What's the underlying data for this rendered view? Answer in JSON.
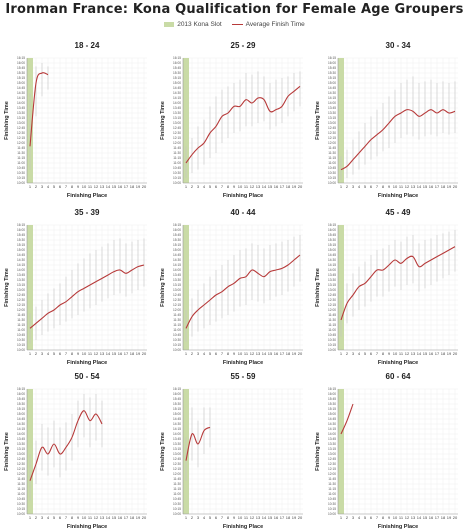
{
  "title": "Ironman France: Kona Qualification for Female Age Groupers",
  "legend": {
    "kona_slot": "2013 Kona Slot",
    "average": "Average Finish Time"
  },
  "colors": {
    "kona_band": "#c9dba6",
    "average_line": "#b73a3a",
    "range_line": "#c4c4c4",
    "grid": "#efefef"
  },
  "axis_labels": {
    "x": "Finishing Place",
    "y": "Finishing Time"
  },
  "chart_data": [
    {
      "type": "line",
      "title": "18 - 24",
      "kona_slots": 1,
      "xlim": [
        1,
        20
      ],
      "ylim": [
        600,
        975
      ],
      "average": [
        [
          1,
          710
        ],
        [
          2,
          900
        ],
        [
          3,
          930
        ],
        [
          4,
          925
        ]
      ],
      "ranges": [
        [
          1,
          640,
          870
        ],
        [
          2,
          800,
          950
        ],
        [
          3,
          860,
          960
        ],
        [
          4,
          880,
          950
        ]
      ]
    },
    {
      "type": "line",
      "title": "25 - 29",
      "kona_slots": 1,
      "xlim": [
        1,
        20
      ],
      "ylim": [
        600,
        975
      ],
      "average": [
        [
          1,
          660
        ],
        [
          2,
          685
        ],
        [
          3,
          705
        ],
        [
          4,
          720
        ],
        [
          5,
          750
        ],
        [
          6,
          770
        ],
        [
          7,
          800
        ],
        [
          8,
          810
        ],
        [
          9,
          830
        ],
        [
          10,
          830
        ],
        [
          11,
          850
        ],
        [
          12,
          840
        ],
        [
          13,
          855
        ],
        [
          14,
          850
        ],
        [
          15,
          815
        ],
        [
          16,
          820
        ],
        [
          17,
          830
        ],
        [
          18,
          860
        ],
        [
          19,
          875
        ],
        [
          20,
          890
        ]
      ],
      "ranges": [
        [
          1,
          615,
          710
        ],
        [
          2,
          630,
          735
        ],
        [
          3,
          640,
          770
        ],
        [
          4,
          655,
          790
        ],
        [
          5,
          675,
          830
        ],
        [
          6,
          690,
          860
        ],
        [
          7,
          720,
          880
        ],
        [
          8,
          735,
          890
        ],
        [
          9,
          750,
          900
        ],
        [
          10,
          755,
          910
        ],
        [
          11,
          770,
          930
        ],
        [
          12,
          770,
          925
        ],
        [
          13,
          780,
          935
        ],
        [
          14,
          785,
          920
        ],
        [
          15,
          760,
          900
        ],
        [
          16,
          770,
          910
        ],
        [
          17,
          780,
          915
        ],
        [
          18,
          800,
          920
        ],
        [
          19,
          815,
          930
        ],
        [
          20,
          830,
          935
        ]
      ]
    },
    {
      "type": "line",
      "title": "30 - 34",
      "kona_slots": 1,
      "xlim": [
        1,
        20
      ],
      "ylim": [
        600,
        975
      ],
      "average": [
        [
          1,
          640
        ],
        [
          2,
          650
        ],
        [
          3,
          670
        ],
        [
          4,
          690
        ],
        [
          5,
          710
        ],
        [
          6,
          730
        ],
        [
          7,
          745
        ],
        [
          8,
          760
        ],
        [
          9,
          780
        ],
        [
          10,
          800
        ],
        [
          11,
          810
        ],
        [
          12,
          820
        ],
        [
          13,
          815
        ],
        [
          14,
          800
        ],
        [
          15,
          810
        ],
        [
          16,
          820
        ],
        [
          17,
          810
        ],
        [
          18,
          820
        ],
        [
          19,
          810
        ],
        [
          20,
          815
        ]
      ],
      "ranges": [
        [
          1,
          610,
          680
        ],
        [
          2,
          615,
          700
        ],
        [
          3,
          625,
          730
        ],
        [
          4,
          640,
          755
        ],
        [
          5,
          655,
          780
        ],
        [
          6,
          670,
          800
        ],
        [
          7,
          680,
          820
        ],
        [
          8,
          695,
          840
        ],
        [
          9,
          705,
          860
        ],
        [
          10,
          720,
          880
        ],
        [
          11,
          735,
          900
        ],
        [
          12,
          745,
          910
        ],
        [
          13,
          740,
          920
        ],
        [
          14,
          730,
          900
        ],
        [
          15,
          740,
          905
        ],
        [
          16,
          745,
          910
        ],
        [
          17,
          740,
          900
        ],
        [
          18,
          750,
          905
        ],
        [
          19,
          745,
          900
        ],
        [
          20,
          750,
          905
        ]
      ]
    },
    {
      "type": "line",
      "title": "35 - 39",
      "kona_slots": 1,
      "xlim": [
        1,
        20
      ],
      "ylim": [
        600,
        975
      ],
      "average": [
        [
          1,
          665
        ],
        [
          2,
          680
        ],
        [
          3,
          695
        ],
        [
          4,
          710
        ],
        [
          5,
          720
        ],
        [
          6,
          735
        ],
        [
          7,
          745
        ],
        [
          8,
          760
        ],
        [
          9,
          775
        ],
        [
          10,
          785
        ],
        [
          11,
          795
        ],
        [
          12,
          805
        ],
        [
          13,
          815
        ],
        [
          14,
          825
        ],
        [
          15,
          835
        ],
        [
          16,
          840
        ],
        [
          17,
          830
        ],
        [
          18,
          840
        ],
        [
          19,
          850
        ],
        [
          20,
          855
        ]
      ],
      "ranges": [
        [
          1,
          620,
          710
        ],
        [
          2,
          630,
          730
        ],
        [
          3,
          645,
          750
        ],
        [
          4,
          655,
          770
        ],
        [
          5,
          665,
          785
        ],
        [
          6,
          675,
          800
        ],
        [
          7,
          685,
          820
        ],
        [
          8,
          695,
          840
        ],
        [
          9,
          705,
          860
        ],
        [
          10,
          715,
          875
        ],
        [
          11,
          725,
          890
        ],
        [
          12,
          735,
          900
        ],
        [
          13,
          745,
          910
        ],
        [
          14,
          755,
          920
        ],
        [
          15,
          765,
          930
        ],
        [
          16,
          770,
          935
        ],
        [
          17,
          760,
          920
        ],
        [
          18,
          770,
          925
        ],
        [
          19,
          780,
          930
        ],
        [
          20,
          790,
          935
        ]
      ]
    },
    {
      "type": "line",
      "title": "40 - 44",
      "kona_slots": 1,
      "xlim": [
        1,
        20
      ],
      "ylim": [
        600,
        975
      ],
      "average": [
        [
          1,
          665
        ],
        [
          2,
          700
        ],
        [
          3,
          720
        ],
        [
          4,
          735
        ],
        [
          5,
          750
        ],
        [
          6,
          765
        ],
        [
          7,
          775
        ],
        [
          8,
          790
        ],
        [
          9,
          800
        ],
        [
          10,
          815
        ],
        [
          11,
          820
        ],
        [
          12,
          840
        ],
        [
          13,
          830
        ],
        [
          14,
          820
        ],
        [
          15,
          835
        ],
        [
          16,
          840
        ],
        [
          17,
          845
        ],
        [
          18,
          855
        ],
        [
          19,
          870
        ],
        [
          20,
          885
        ]
      ],
      "ranges": [
        [
          1,
          625,
          720
        ],
        [
          2,
          640,
          755
        ],
        [
          3,
          655,
          780
        ],
        [
          4,
          665,
          800
        ],
        [
          5,
          675,
          820
        ],
        [
          6,
          685,
          840
        ],
        [
          7,
          695,
          855
        ],
        [
          8,
          705,
          870
        ],
        [
          9,
          715,
          885
        ],
        [
          10,
          730,
          900
        ],
        [
          11,
          735,
          905
        ],
        [
          12,
          750,
          920
        ],
        [
          13,
          745,
          915
        ],
        [
          14,
          740,
          905
        ],
        [
          15,
          750,
          915
        ],
        [
          16,
          760,
          920
        ],
        [
          17,
          765,
          925
        ],
        [
          18,
          775,
          930
        ],
        [
          19,
          790,
          940
        ],
        [
          20,
          805,
          945
        ]
      ]
    },
    {
      "type": "line",
      "title": "45 - 49",
      "kona_slots": 1,
      "xlim": [
        1,
        20
      ],
      "ylim": [
        600,
        975
      ],
      "average": [
        [
          1,
          690
        ],
        [
          2,
          740
        ],
        [
          3,
          765
        ],
        [
          4,
          790
        ],
        [
          5,
          800
        ],
        [
          6,
          820
        ],
        [
          7,
          840
        ],
        [
          8,
          840
        ],
        [
          9,
          855
        ],
        [
          10,
          870
        ],
        [
          11,
          860
        ],
        [
          12,
          875
        ],
        [
          13,
          880
        ],
        [
          14,
          850
        ],
        [
          15,
          860
        ],
        [
          16,
          870
        ],
        [
          17,
          880
        ],
        [
          18,
          890
        ],
        [
          19,
          900
        ],
        [
          20,
          910
        ]
      ],
      "ranges": [
        [
          1,
          640,
          750
        ],
        [
          2,
          680,
          800
        ],
        [
          3,
          700,
          830
        ],
        [
          4,
          720,
          850
        ],
        [
          5,
          730,
          865
        ],
        [
          6,
          745,
          885
        ],
        [
          7,
          760,
          900
        ],
        [
          8,
          760,
          905
        ],
        [
          9,
          775,
          915
        ],
        [
          10,
          790,
          930
        ],
        [
          11,
          780,
          925
        ],
        [
          12,
          795,
          940
        ],
        [
          13,
          800,
          945
        ],
        [
          14,
          775,
          920
        ],
        [
          15,
          785,
          930
        ],
        [
          16,
          795,
          935
        ],
        [
          17,
          805,
          945
        ],
        [
          18,
          815,
          950
        ],
        [
          19,
          825,
          955
        ],
        [
          20,
          835,
          960
        ]
      ]
    },
    {
      "type": "line",
      "title": "50 - 54",
      "kona_slots": 1,
      "xlim": [
        1,
        20
      ],
      "ylim": [
        600,
        975
      ],
      "average": [
        [
          1,
          700
        ],
        [
          2,
          750
        ],
        [
          3,
          800
        ],
        [
          4,
          780
        ],
        [
          5,
          810
        ],
        [
          6,
          780
        ],
        [
          7,
          800
        ],
        [
          8,
          830
        ],
        [
          9,
          880
        ],
        [
          10,
          910
        ],
        [
          11,
          880
        ],
        [
          12,
          900
        ],
        [
          13,
          870
        ]
      ],
      "ranges": [
        [
          1,
          640,
          780
        ],
        [
          2,
          690,
          820
        ],
        [
          3,
          730,
          870
        ],
        [
          4,
          715,
          860
        ],
        [
          5,
          740,
          880
        ],
        [
          6,
          710,
          860
        ],
        [
          7,
          730,
          875
        ],
        [
          8,
          760,
          900
        ],
        [
          9,
          800,
          940
        ],
        [
          10,
          830,
          960
        ],
        [
          11,
          800,
          950
        ],
        [
          12,
          820,
          960
        ],
        [
          13,
          800,
          940
        ]
      ]
    },
    {
      "type": "line",
      "title": "55 - 59",
      "kona_slots": 1,
      "xlim": [
        1,
        20
      ],
      "ylim": [
        600,
        975
      ],
      "average": [
        [
          1,
          760
        ],
        [
          2,
          840
        ],
        [
          3,
          810
        ],
        [
          4,
          850
        ],
        [
          5,
          860
        ]
      ],
      "ranges": [
        [
          1,
          700,
          830
        ],
        [
          2,
          760,
          920
        ],
        [
          3,
          740,
          880
        ],
        [
          4,
          780,
          920
        ],
        [
          5,
          800,
          920
        ]
      ]
    },
    {
      "type": "line",
      "title": "60 - 64",
      "kona_slots": 1,
      "xlim": [
        1,
        20
      ],
      "ylim": [
        600,
        975
      ],
      "average": [
        [
          1,
          840
        ],
        [
          2,
          880
        ],
        [
          3,
          930
        ]
      ],
      "ranges": []
    }
  ]
}
